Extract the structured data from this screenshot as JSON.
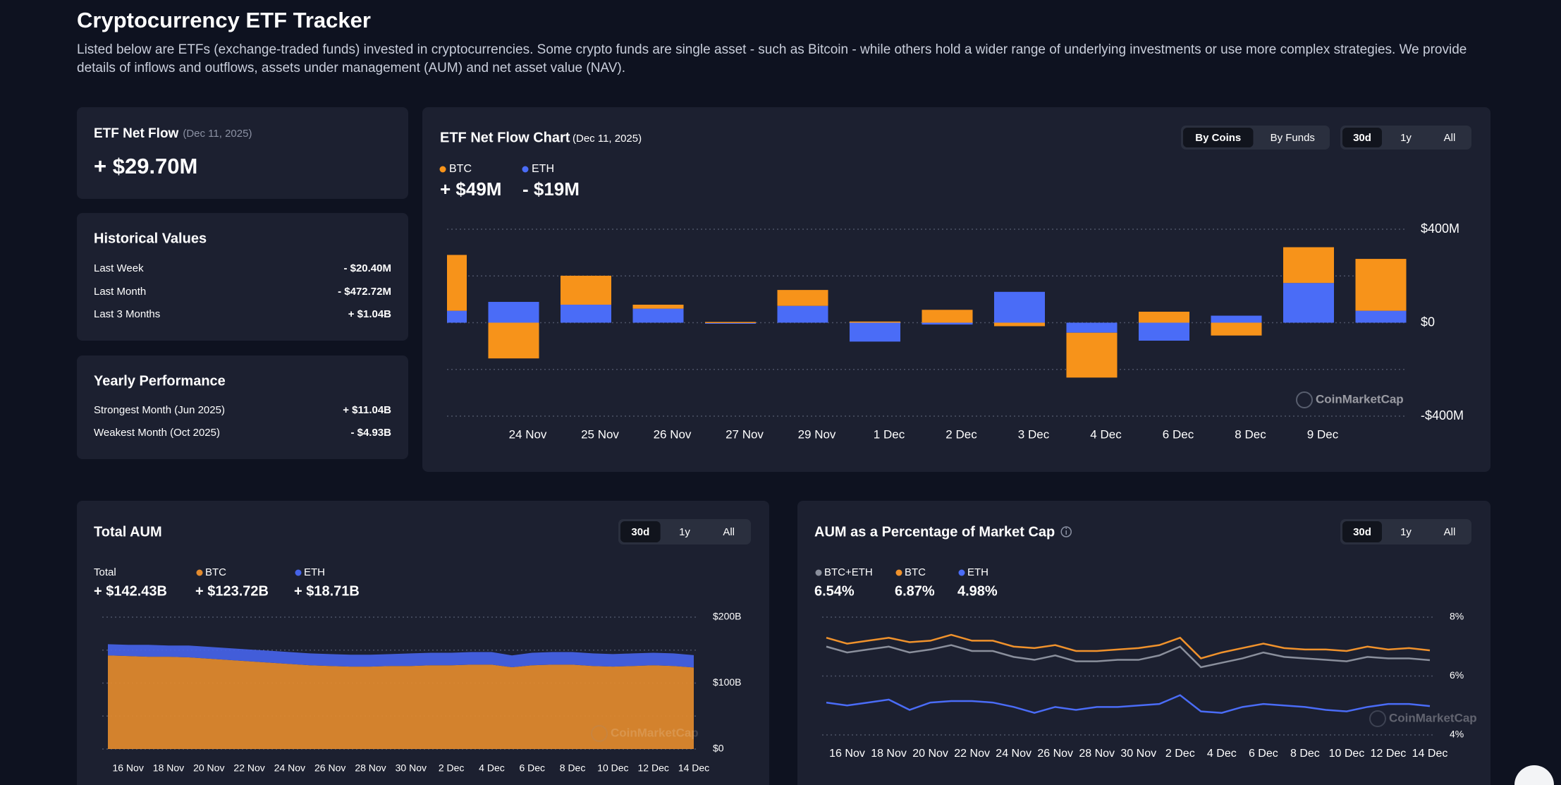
{
  "header": {
    "title": "Cryptocurrency ETF Tracker",
    "description": "Listed below are ETFs (exchange-traded funds) invested in cryptocurrencies. Some crypto funds are single asset - such as Bitcoin - while others hold a wider range of underlying investments or use more complex strategies. We provide details of inflows and outflows, assets under management (AUM) and net asset value (NAV)."
  },
  "net_flow": {
    "title": "ETF Net Flow",
    "date": "(Dec 11, 2025)",
    "value": "+ $29.70M"
  },
  "historical": {
    "title": "Historical Values",
    "rows": [
      {
        "label": "Last Week",
        "value": "- $20.40M"
      },
      {
        "label": "Last Month",
        "value": "- $472.72M"
      },
      {
        "label": "Last 3 Months",
        "value": "+ $1.04B"
      }
    ]
  },
  "yearly": {
    "title": "Yearly Performance",
    "rows": [
      {
        "label": "Strongest Month (Jun 2025)",
        "value": "+ $11.04B"
      },
      {
        "label": "Weakest Month (Oct 2025)",
        "value": "- $4.93B"
      }
    ]
  },
  "chart_data": [
    {
      "type": "bar",
      "stacked": true,
      "title": "ETF Net Flow Chart",
      "subtitle": "(Dec 11, 2025)",
      "views": [
        "By Coins",
        "By Funds"
      ],
      "active_view": 0,
      "ranges": [
        "30d",
        "1y",
        "All"
      ],
      "active_range": 0,
      "watermark": "CoinMarketCap",
      "grid": true,
      "categories": [
        null,
        "24 Nov",
        "25 Nov",
        "26 Nov",
        "27 Nov",
        "29 Nov",
        "1 Dec",
        "2 Dec",
        "3 Dec",
        "4 Dec",
        "6 Dec",
        "8 Dec",
        "9 Dec",
        null
      ],
      "series": [
        {
          "name": "BTC",
          "color": "#f7931a",
          "summary": "+ $49M",
          "values": [
            239,
            -153,
            124,
            17,
            3,
            68,
            5,
            55,
            -15,
            -192,
            47,
            -55,
            153,
            222
          ]
        },
        {
          "name": "ETH",
          "color": "#4a6cf7",
          "summary": "- $19M",
          "values": [
            51,
            89,
            77,
            60,
            0,
            72,
            -81,
            -8,
            132,
            -43,
            -77,
            30,
            170,
            51
          ]
        }
      ],
      "ylim": [
        -400,
        400
      ],
      "yticks": [
        {
          "value": 400,
          "label": "$400M"
        },
        {
          "value": 200,
          "label": null
        },
        {
          "value": 0,
          "label": "$0"
        },
        {
          "value": -200,
          "label": null
        },
        {
          "value": -400,
          "label": "-$400M"
        }
      ]
    },
    {
      "type": "area",
      "stacked": true,
      "title": "Total AUM",
      "ranges": [
        "30d",
        "1y",
        "All"
      ],
      "active_range": 0,
      "watermark": "CoinMarketCap",
      "grid": true,
      "total": {
        "name": "Total",
        "summary": "+ $142.43B"
      },
      "categories": [
        null,
        "16 Nov",
        null,
        "18 Nov",
        null,
        "20 Nov",
        null,
        "22 Nov",
        null,
        "24 Nov",
        null,
        "26 Nov",
        null,
        "28 Nov",
        null,
        "30 Nov",
        null,
        "2 Dec",
        null,
        "4 Dec",
        null,
        "6 Dec",
        null,
        "8 Dec",
        null,
        "10 Dec",
        null,
        "12 Dec",
        null,
        "14 Dec"
      ],
      "series": [
        {
          "name": "BTC",
          "color": "#e38b2e",
          "summary": "+ $123.72B",
          "values": [
            142,
            141,
            140,
            140,
            139,
            137,
            135,
            133,
            131,
            129,
            127,
            126,
            125,
            125,
            126,
            126,
            127,
            127,
            128,
            128,
            124,
            127,
            128,
            128,
            126,
            125,
            126,
            127,
            126,
            123.72
          ]
        },
        {
          "name": "ETH",
          "color": "#4563e8",
          "summary": "+ $18.71B",
          "values": [
            17,
            17,
            18,
            17,
            18,
            18,
            18,
            18,
            18,
            18,
            18,
            18,
            18,
            18,
            18,
            19,
            19,
            19,
            19,
            19,
            18,
            19,
            19,
            19,
            19,
            19,
            19,
            19,
            19,
            18.71
          ]
        }
      ],
      "ylim": [
        0,
        200
      ],
      "yticks": [
        {
          "value": 200,
          "label": "$200B"
        },
        {
          "value": 150,
          "label": null
        },
        {
          "value": 100,
          "label": "$100B"
        },
        {
          "value": 50,
          "label": null
        },
        {
          "value": 0,
          "label": "$0"
        }
      ]
    },
    {
      "type": "line",
      "title": "AUM as a Percentage of Market Cap",
      "ranges": [
        "30d",
        "1y",
        "All"
      ],
      "active_range": 0,
      "watermark": "CoinMarketCap",
      "grid": true,
      "categories": [
        null,
        "16 Nov",
        null,
        "18 Nov",
        null,
        "20 Nov",
        null,
        "22 Nov",
        null,
        "24 Nov",
        null,
        "26 Nov",
        null,
        "28 Nov",
        null,
        "30 Nov",
        null,
        "2 Dec",
        null,
        "4 Dec",
        null,
        "6 Dec",
        null,
        "8 Dec",
        null,
        "10 Dec",
        null,
        "12 Dec",
        null,
        "14 Dec"
      ],
      "series": [
        {
          "name": "BTC+ETH",
          "color": "#8a8f9c",
          "summary": "6.54%",
          "values": [
            7.0,
            6.8,
            6.9,
            7.0,
            6.8,
            6.9,
            7.05,
            6.85,
            6.85,
            6.65,
            6.55,
            6.7,
            6.5,
            6.5,
            6.55,
            6.55,
            6.7,
            7.0,
            6.3,
            6.45,
            6.6,
            6.8,
            6.65,
            6.6,
            6.55,
            6.5,
            6.65,
            6.6,
            6.6,
            6.54
          ]
        },
        {
          "name": "BTC",
          "color": "#f0922c",
          "summary": "6.87%",
          "values": [
            7.3,
            7.1,
            7.2,
            7.3,
            7.15,
            7.2,
            7.4,
            7.2,
            7.2,
            7.0,
            6.95,
            7.05,
            6.85,
            6.85,
            6.9,
            6.95,
            7.05,
            7.3,
            6.6,
            6.8,
            6.95,
            7.1,
            6.95,
            6.9,
            6.9,
            6.85,
            7.0,
            6.9,
            6.95,
            6.87
          ]
        },
        {
          "name": "ETH",
          "color": "#4a6cf7",
          "summary": "4.98%",
          "values": [
            5.1,
            5.0,
            5.1,
            5.2,
            4.85,
            5.1,
            5.15,
            5.15,
            5.1,
            4.95,
            4.75,
            4.95,
            4.85,
            4.95,
            4.95,
            5.0,
            5.05,
            5.35,
            4.8,
            4.75,
            4.95,
            5.05,
            5.0,
            4.95,
            4.85,
            4.8,
            4.95,
            5.05,
            5.05,
            4.98
          ]
        }
      ],
      "ylim": [
        4,
        8
      ],
      "yticks": [
        {
          "value": 8,
          "label": "8%"
        },
        {
          "value": 6,
          "label": "6%"
        },
        {
          "value": 4,
          "label": "4%"
        }
      ]
    }
  ]
}
